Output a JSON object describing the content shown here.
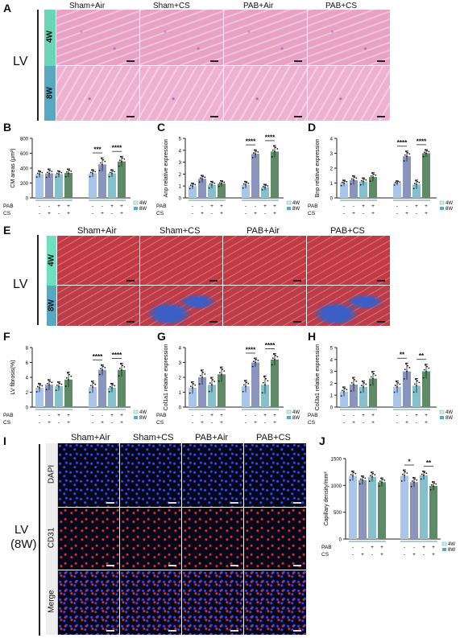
{
  "panel_letters": {
    "A": "A",
    "B": "B",
    "C": "C",
    "D": "D",
    "E": "E",
    "F": "F",
    "G": "G",
    "H": "H",
    "I": "I",
    "J": "J"
  },
  "region_labels": {
    "lv_a": "LV",
    "lv_e": "LV",
    "lv_i_1": "LV",
    "lv_i_2": "(8W)"
  },
  "group_headers": [
    "Sham+Air",
    "Sham+CS",
    "PAB+Air",
    "PAB+CS"
  ],
  "time_rows": [
    "4W",
    "8W"
  ],
  "stain_rows": [
    "DAPI",
    "CD31",
    "Merge"
  ],
  "colors": {
    "he_pink": "#e7a2c6",
    "mt_red": "#c43a44",
    "mt_blue": "#3b5fc4",
    "fluor_dark": "#07071a",
    "strip_4w": "#69d7b6",
    "strip_8w": "#58a8c2",
    "bar_4w_sham_air": "#a9c6ea",
    "bar_4w_sham_cs": "#8a95bd",
    "bar_4w_pab_air": "#86c0cc",
    "bar_4w_pab_cs": "#5e8a66"
  },
  "chart_data": [
    {
      "panel": "B",
      "type": "bar",
      "ylabel": "CM areas (μm²)",
      "ylim": [
        0,
        800
      ],
      "yticks": [
        "0",
        "200",
        "400",
        "600",
        "800"
      ],
      "categories": [
        "4W Sham+Air",
        "4W Sham+CS",
        "4W PAB+Air",
        "4W PAB+CS",
        "8W Sham+Air",
        "8W Sham+CS",
        "8W PAB+Air",
        "8W PAB+CS"
      ],
      "values": [
        320,
        330,
        320,
        335,
        330,
        450,
        330,
        490
      ],
      "errors": [
        45,
        60,
        45,
        55,
        50,
        90,
        50,
        70
      ],
      "sig": [
        {
          "from": 4,
          "to": 5,
          "label": "***"
        },
        {
          "from": 6,
          "to": 7,
          "label": "****"
        }
      ]
    },
    {
      "panel": "C",
      "type": "bar",
      "ylabel": "Anp relative expression",
      "ylim": [
        0,
        5
      ],
      "yticks": [
        "0",
        "1",
        "2",
        "3",
        "4",
        "5"
      ],
      "categories": [
        "4W Sham+Air",
        "4W Sham+CS",
        "4W PAB+Air",
        "4W PAB+CS",
        "8W Sham+Air",
        "8W Sham+CS",
        "8W PAB+Air",
        "8W PAB+CS"
      ],
      "values": [
        1.0,
        1.6,
        1.1,
        1.2,
        1.1,
        3.7,
        0.9,
        3.9
      ],
      "errors": [
        0.25,
        0.3,
        0.3,
        0.25,
        0.3,
        0.35,
        0.25,
        0.5
      ],
      "sig": [
        {
          "from": 4,
          "to": 5,
          "label": "****"
        },
        {
          "from": 6,
          "to": 7,
          "label": "****"
        }
      ]
    },
    {
      "panel": "D",
      "type": "bar",
      "ylabel": "Bnp relative expression",
      "ylim": [
        0,
        4
      ],
      "yticks": [
        "0",
        "1",
        "2",
        "3",
        "4"
      ],
      "categories": [
        "4W Sham+Air",
        "4W Sham+CS",
        "4W PAB+Air",
        "4W PAB+CS",
        "8W Sham+Air",
        "8W Sham+CS",
        "8W PAB+Air",
        "8W PAB+CS"
      ],
      "values": [
        1.0,
        1.2,
        1.1,
        1.4,
        1.0,
        2.8,
        0.9,
        3.0
      ],
      "errors": [
        0.2,
        0.3,
        0.25,
        0.3,
        0.15,
        0.35,
        0.3,
        0.25
      ],
      "sig": [
        {
          "from": 4,
          "to": 5,
          "label": "****"
        },
        {
          "from": 6,
          "to": 7,
          "label": "****"
        }
      ]
    },
    {
      "panel": "F",
      "type": "bar",
      "ylabel": "LV fibrosis(%)",
      "ylim": [
        0,
        8
      ],
      "yticks": [
        "0",
        "2",
        "4",
        "6",
        "8"
      ],
      "categories": [
        "4W Sham+Air",
        "4W Sham+CS",
        "4W PAB+Air",
        "4W PAB+CS",
        "8W Sham+Air",
        "8W Sham+CS",
        "8W PAB+Air",
        "8W PAB+CS"
      ],
      "values": [
        2.6,
        3.0,
        2.8,
        3.7,
        2.7,
        5.0,
        2.6,
        5.0
      ],
      "errors": [
        0.6,
        0.7,
        0.6,
        1.0,
        0.8,
        0.7,
        0.6,
        0.9
      ],
      "sig": [
        {
          "from": 4,
          "to": 5,
          "label": "****"
        },
        {
          "from": 6,
          "to": 7,
          "label": "****"
        }
      ]
    },
    {
      "panel": "G",
      "type": "bar",
      "ylabel": "Col1a1 relative expression",
      "ylim": [
        0,
        4
      ],
      "yticks": [
        "0",
        "1",
        "2",
        "3",
        "4"
      ],
      "categories": [
        "4W Sham+Air",
        "4W Sham+CS",
        "4W PAB+Air",
        "4W PAB+CS",
        "8W Sham+Air",
        "8W Sham+CS",
        "8W PAB+Air",
        "8W PAB+CS"
      ],
      "values": [
        1.3,
        2.0,
        1.5,
        2.2,
        1.4,
        3.0,
        1.5,
        3.2
      ],
      "errors": [
        0.4,
        0.5,
        0.5,
        0.5,
        0.4,
        0.3,
        0.6,
        0.4
      ],
      "sig": [
        {
          "from": 4,
          "to": 5,
          "label": "****"
        },
        {
          "from": 6,
          "to": 7,
          "label": "****"
        }
      ]
    },
    {
      "panel": "H",
      "type": "bar",
      "ylabel": "Col3a1 relative expression",
      "ylim": [
        0,
        5
      ],
      "yticks": [
        "0",
        "1",
        "2",
        "3",
        "4",
        "5"
      ],
      "categories": [
        "4W Sham+Air",
        "4W Sham+CS",
        "4W PAB+Air",
        "4W PAB+CS",
        "8W Sham+Air",
        "8W Sham+CS",
        "8W PAB+Air",
        "8W PAB+CS"
      ],
      "values": [
        1.3,
        1.9,
        1.7,
        2.4,
        1.7,
        3.0,
        1.8,
        3.0
      ],
      "errors": [
        0.4,
        0.6,
        0.5,
        0.6,
        0.5,
        0.7,
        0.6,
        0.6
      ],
      "sig": [
        {
          "from": 4,
          "to": 5,
          "label": "**"
        },
        {
          "from": 6,
          "to": 7,
          "label": "**"
        }
      ]
    },
    {
      "panel": "J",
      "type": "bar",
      "ylabel": "Capillary density/mm²",
      "ylim": [
        0,
        1500
      ],
      "yticks": [
        "0",
        "500",
        "1000",
        "1500"
      ],
      "categories": [
        "4W Sham+Air",
        "4W Sham+CS",
        "4W PAB+Air",
        "4W PAB+CS",
        "8W Sham+Air",
        "8W Sham+CS",
        "8W PAB+Air",
        "8W PAB+CS"
      ],
      "values": [
        1180,
        1100,
        1160,
        1060,
        1180,
        1060,
        1190,
        990
      ],
      "errors": [
        90,
        80,
        90,
        80,
        110,
        90,
        80,
        80
      ],
      "sig": [
        {
          "from": 4,
          "to": 5,
          "label": "*"
        },
        {
          "from": 6,
          "to": 7,
          "label": "**"
        }
      ]
    }
  ],
  "chart_rows": {
    "pab_label": "PAB",
    "cs_label": "CS",
    "pab": [
      "-",
      "-",
      "+",
      "+",
      "-",
      "-",
      "+",
      "+"
    ],
    "cs": [
      "-",
      "+",
      "-",
      "+",
      "-",
      "+",
      "-",
      "+"
    ]
  },
  "legend": {
    "w4": "4W",
    "w8": "8W"
  }
}
